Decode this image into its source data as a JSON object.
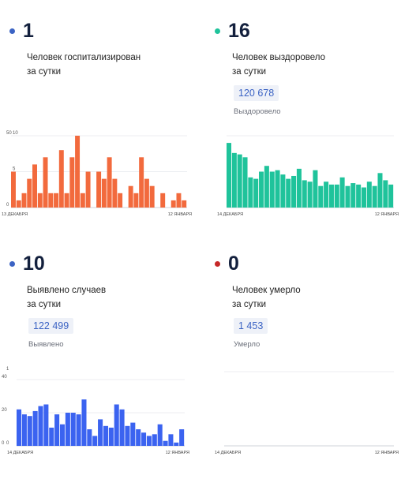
{
  "panels": [
    {
      "value": "1",
      "caption_line1": "Человек госпитализирован",
      "caption_line2": "за сутки",
      "dot_color": "#3b63c4",
      "color": "#f26a3d"
    },
    {
      "value": "16",
      "caption_line1": "Человек выздоровело",
      "caption_line2": "за сутки",
      "total": "120 678",
      "total_label": "Выздоровело",
      "dot_color": "#1fc39b",
      "color": "#1fc39b"
    },
    {
      "value": "10",
      "caption_line1": "Выявлено случаев",
      "caption_line2": "за сутки",
      "total": "122 499",
      "total_label": "Выявлено",
      "dot_color": "#3b63c4",
      "color": "#3b63f0"
    },
    {
      "value": "0",
      "caption_line1": "Человек умерло",
      "caption_line2": "за сутки",
      "total": "1 453",
      "total_label": "Умерло",
      "dot_color": "#c62828",
      "color": "#c62828"
    }
  ],
  "chart_data": [
    {
      "type": "bar",
      "x_start_label": "13 ДЕКАБРЯ",
      "x_end_label": "12 ЯНВАРЯ",
      "ylim": [
        0,
        10
      ],
      "y_ticks": [
        "10",
        "5",
        "0"
      ],
      "values": [
        5,
        1,
        2,
        4,
        6,
        2,
        7,
        2,
        2,
        8,
        2,
        7,
        10,
        2,
        5,
        0,
        5,
        4,
        7,
        4,
        2,
        0,
        3,
        2,
        7,
        4,
        3,
        0,
        2,
        0,
        1,
        2,
        1
      ]
    },
    {
      "type": "bar",
      "x_start_label": "14 ДЕКАБРЯ",
      "x_end_label": "12 ЯНВАРЯ",
      "ylim": [
        0,
        50
      ],
      "y_ticks": [
        "50",
        "0"
      ],
      "values": [
        45,
        38,
        37,
        35,
        21,
        20,
        25,
        29,
        25,
        26,
        23,
        20,
        22,
        27,
        19,
        18,
        26,
        15,
        18,
        16,
        16,
        21,
        15,
        17,
        16,
        14,
        18,
        15,
        24,
        19,
        16
      ]
    },
    {
      "type": "bar",
      "x_start_label": "14 ДЕКАБРЯ",
      "x_end_label": "12 ЯНВАРЯ",
      "ylim": [
        0,
        40
      ],
      "y_ticks": [
        "40",
        "20",
        "0"
      ],
      "values": [
        22,
        19,
        18,
        21,
        24,
        25,
        11,
        19,
        13,
        20,
        20,
        19,
        28,
        10,
        6,
        16,
        12,
        11,
        25,
        22,
        12,
        14,
        10,
        8,
        6,
        7,
        13,
        3,
        7,
        2,
        10
      ]
    },
    {
      "type": "bar",
      "x_start_label": "14 ДЕКАБРЯ",
      "x_end_label": "12 ЯНВАРЯ",
      "ylim": [
        0,
        1
      ],
      "y_ticks": [
        "1",
        "0"
      ],
      "values": [
        0,
        0,
        0,
        0,
        0,
        0,
        0,
        0,
        0,
        0,
        0,
        0,
        0,
        0,
        0,
        0,
        0,
        0,
        0,
        0,
        0,
        0,
        0,
        0,
        0,
        0,
        0,
        0,
        0,
        0
      ]
    }
  ]
}
